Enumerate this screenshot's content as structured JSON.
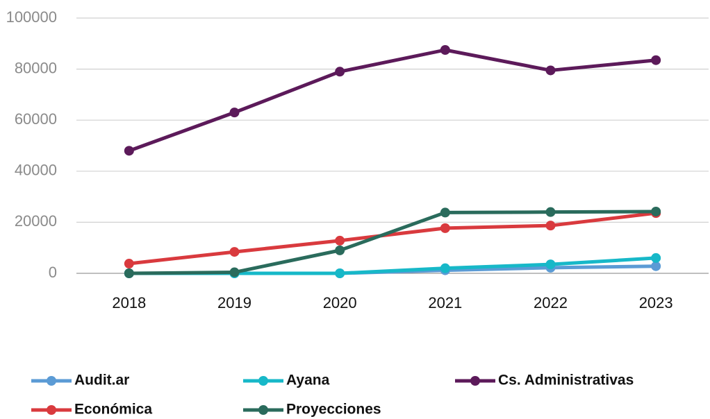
{
  "chart_data": {
    "type": "line",
    "categories": [
      "2018",
      "2019",
      "2020",
      "2021",
      "2022",
      "2023"
    ],
    "series": [
      {
        "name": "Audit.ar",
        "color": "#5b9bd5",
        "values": [
          0,
          0,
          0,
          1200,
          2200,
          2800
        ]
      },
      {
        "name": "Ayana",
        "color": "#17b8c8",
        "values": [
          0,
          0,
          0,
          2000,
          3500,
          6000
        ]
      },
      {
        "name": "Cs. Administrativas",
        "color": "#5c1a5a",
        "values": [
          48000,
          63000,
          79000,
          87500,
          79500,
          83500
        ]
      },
      {
        "name": "Económica",
        "color": "#d93a3e",
        "values": [
          3800,
          8400,
          12800,
          17700,
          18700,
          23600
        ]
      },
      {
        "name": "Proyecciones",
        "color": "#2a6b5c",
        "values": [
          0,
          400,
          9000,
          23800,
          24000,
          24200
        ]
      }
    ],
    "ylim": [
      0,
      100000
    ],
    "yticks": [
      0,
      20000,
      40000,
      60000,
      80000,
      100000
    ],
    "grid": true
  }
}
